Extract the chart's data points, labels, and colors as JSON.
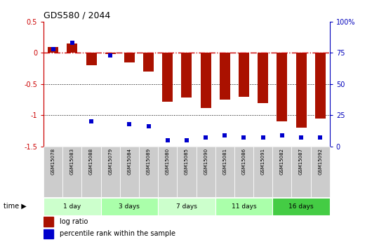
{
  "title": "GDS580 / 2044",
  "samples": [
    "GSM15078",
    "GSM15083",
    "GSM15088",
    "GSM15079",
    "GSM15084",
    "GSM15089",
    "GSM15080",
    "GSM15085",
    "GSM15090",
    "GSM15081",
    "GSM15086",
    "GSM15091",
    "GSM15082",
    "GSM15087",
    "GSM15092"
  ],
  "log_ratio": [
    0.1,
    0.15,
    -0.2,
    -0.02,
    -0.15,
    -0.3,
    -0.78,
    -0.72,
    -0.88,
    -0.75,
    -0.7,
    -0.8,
    -1.1,
    -1.2,
    -1.05
  ],
  "percentile_rank": [
    78,
    83,
    20,
    73,
    18,
    16,
    5,
    5,
    7,
    9,
    7,
    7,
    9,
    7,
    7
  ],
  "ylim_left": [
    -1.5,
    0.5
  ],
  "ylim_right": [
    0,
    100
  ],
  "yticks_left": [
    0.5,
    0.0,
    -0.5,
    -1.0,
    -1.5
  ],
  "yticks_right": [
    100,
    75,
    50,
    25,
    0
  ],
  "ytick_labels_left": [
    "0.5",
    "0",
    "-0.5",
    "-1",
    "-1.5"
  ],
  "ytick_labels_right": [
    "100%",
    "75",
    "50",
    "25",
    "0"
  ],
  "bar_color": "#AA1100",
  "dot_color": "#0000CC",
  "dashline_color": "#CC0000",
  "time_groups": [
    {
      "label": "1 day",
      "start": 0,
      "end": 3,
      "color": "#ccffcc"
    },
    {
      "label": "3 days",
      "start": 3,
      "end": 6,
      "color": "#aaffaa"
    },
    {
      "label": "7 days",
      "start": 6,
      "end": 9,
      "color": "#ccffcc"
    },
    {
      "label": "11 days",
      "start": 9,
      "end": 12,
      "color": "#aaffaa"
    },
    {
      "label": "16 days",
      "start": 12,
      "end": 15,
      "color": "#44cc44"
    }
  ],
  "legend_labels": [
    "log ratio",
    "percentile rank within the sample"
  ],
  "legend_colors": [
    "#AA1100",
    "#0000CC"
  ],
  "sample_box_color": "#cccccc",
  "background_color": "#ffffff"
}
